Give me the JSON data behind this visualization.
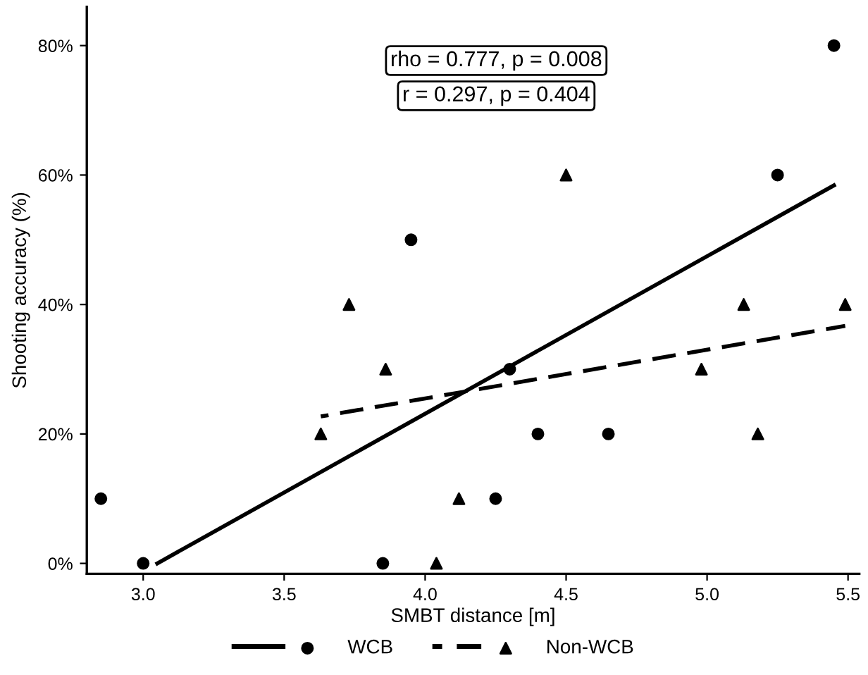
{
  "chart_data": {
    "type": "scatter",
    "xlabel": "SMBT distance [m]",
    "ylabel": "Shooting accuracy (%)",
    "xlim": [
      2.8,
      5.54
    ],
    "ylim": [
      -1.6,
      86
    ],
    "xticks": [
      {
        "value": 3.0,
        "label": "3.0"
      },
      {
        "value": 3.5,
        "label": "3.5"
      },
      {
        "value": 4.0,
        "label": "4.0"
      },
      {
        "value": 4.5,
        "label": "4.5"
      },
      {
        "value": 5.0,
        "label": "5.0"
      },
      {
        "value": 5.5,
        "label": "5.5"
      }
    ],
    "yticks": [
      {
        "value": 0,
        "label": "0%"
      },
      {
        "value": 20,
        "label": "20%"
      },
      {
        "value": 40,
        "label": "40%"
      },
      {
        "value": 60,
        "label": "60%"
      },
      {
        "value": 80,
        "label": "80%"
      }
    ],
    "grid": false,
    "legend": "bottom",
    "annotations": [
      "rho = 0.777, p = 0.008",
      "r = 0.297, p = 0.404"
    ],
    "series": [
      {
        "name": "WCB",
        "type": "scatter",
        "marker": "circle",
        "line_style": "solid",
        "color": "#000000",
        "x": [
          2.85,
          3.0,
          3.85,
          3.95,
          4.25,
          4.3,
          4.4,
          4.65,
          5.25,
          5.45
        ],
        "values": [
          10,
          0,
          0,
          50,
          10,
          30,
          20,
          20,
          60,
          80
        ]
      },
      {
        "name": "Non-WCB",
        "type": "scatter",
        "marker": "triangle",
        "line_style": "dashed",
        "color": "#000000",
        "x": [
          3.63,
          3.73,
          3.86,
          4.04,
          4.12,
          4.5,
          4.98,
          5.13,
          5.18,
          5.49
        ],
        "values": [
          20,
          40,
          30,
          0,
          10,
          60,
          30,
          40,
          20,
          40
        ]
      },
      {
        "type": "line",
        "line_style": "solid",
        "color": "#000000",
        "x": [
          3.05,
          5.45
        ],
        "values": [
          0,
          58.4
        ]
      },
      {
        "type": "line",
        "line_style": "dashed",
        "color": "#000000",
        "x": [
          3.63,
          5.49
        ],
        "values": [
          22.7,
          36.7
        ]
      }
    ]
  }
}
